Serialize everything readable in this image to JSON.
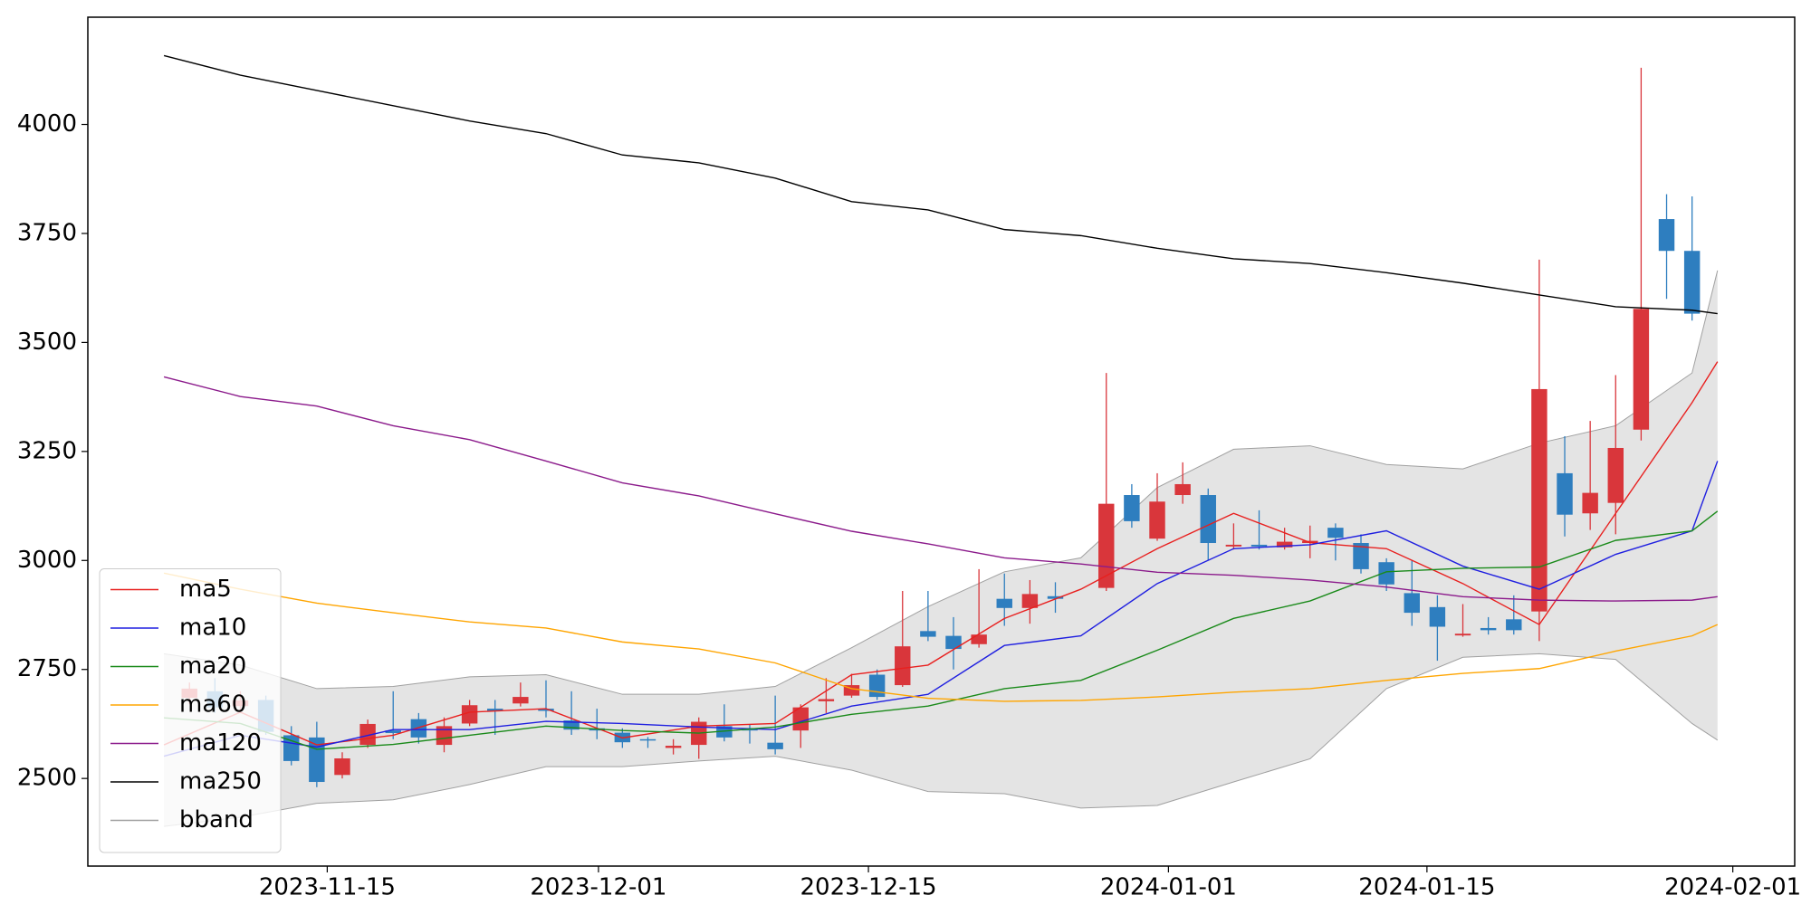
{
  "chart_data": {
    "type": "candlestick",
    "xlim": [
      -2.99,
      64.03
    ],
    "ylim": [
      2299,
      4246
    ],
    "xticks": [
      {
        "value": 6.41,
        "label": "2023-11-15"
      },
      {
        "value": 17.06,
        "label": "2023-12-01"
      },
      {
        "value": 27.66,
        "label": "2023-12-15"
      },
      {
        "value": 39.44,
        "label": "2024-01-01"
      },
      {
        "value": 49.59,
        "label": "2024-01-15"
      },
      {
        "value": 61.6,
        "label": "2024-02-01"
      }
    ],
    "yticks": [
      2500,
      2750,
      3000,
      3250,
      3500,
      3750,
      4000
    ],
    "legend": "lower left",
    "candles": {
      "up_color": "#d9363b",
      "down_color": "#2e7ebf",
      "x": [
        1,
        2,
        3,
        4,
        5,
        6,
        7,
        8,
        9,
        10,
        11,
        12,
        13,
        14,
        15,
        16,
        17,
        18,
        19,
        20,
        21,
        22,
        23,
        24,
        25,
        26,
        27,
        28,
        29,
        30,
        31,
        32,
        33,
        34,
        35,
        37,
        38,
        39,
        40,
        41,
        42,
        43,
        44,
        45,
        46,
        47,
        48,
        49,
        50,
        51,
        52,
        53,
        54,
        55,
        56,
        57,
        58,
        59,
        60
      ],
      "open": [
        2685,
        2700,
        2666,
        2680,
        2599,
        2594,
        2508,
        2577,
        2610,
        2636,
        2577,
        2626,
        2660,
        2672,
        2660,
        2633,
        2615,
        2605,
        2590,
        2570,
        2577,
        2620,
        2615,
        2582,
        2610,
        2677,
        2690,
        2738,
        2714,
        2838,
        2827,
        2808,
        2912,
        2891,
        2918,
        2937,
        3150,
        3050,
        3150,
        3150,
        3032,
        3036,
        3030,
        3040,
        3075,
        3040,
        2996,
        2925,
        2893,
        2828,
        2845,
        2865,
        2883,
        3200,
        3108,
        3132,
        3300,
        3783,
        3710
      ],
      "high": [
        2720,
        2730,
        2700,
        2690,
        2620,
        2630,
        2560,
        2635,
        2700,
        2650,
        2640,
        2680,
        2680,
        2720,
        2725,
        2700,
        2660,
        2615,
        2595,
        2590,
        2640,
        2670,
        2625,
        2690,
        2670,
        2730,
        2740,
        2750,
        2930,
        2930,
        2870,
        2980,
        2970,
        2955,
        2950,
        3430,
        3175,
        3200,
        3225,
        3165,
        3085,
        3115,
        3075,
        3080,
        3085,
        3060,
        3005,
        3000,
        2920,
        2900,
        2870,
        2920,
        3690,
        3285,
        3320,
        3425,
        4130,
        3840,
        3835
      ],
      "low": [
        2670,
        2650,
        2650,
        2600,
        2530,
        2480,
        2500,
        2570,
        2590,
        2580,
        2560,
        2620,
        2600,
        2665,
        2640,
        2600,
        2590,
        2570,
        2570,
        2555,
        2545,
        2585,
        2580,
        2555,
        2570,
        2650,
        2685,
        2680,
        2710,
        2815,
        2750,
        2800,
        2850,
        2855,
        2880,
        2930,
        3075,
        3045,
        3130,
        3000,
        3025,
        3025,
        3025,
        3005,
        3000,
        2970,
        2930,
        2850,
        2770,
        2825,
        2830,
        2830,
        2815,
        3055,
        3070,
        3060,
        3275,
        3600,
        3550
      ],
      "close": [
        2706,
        2663,
        2679,
        2607,
        2540,
        2492,
        2546,
        2625,
        2604,
        2594,
        2620,
        2668,
        2655,
        2687,
        2655,
        2612,
        2610,
        2583,
        2588,
        2575,
        2630,
        2594,
        2610,
        2567,
        2663,
        2682,
        2714,
        2687,
        2803,
        2825,
        2797,
        2830,
        2891,
        2923,
        2912,
        3130,
        3090,
        3135,
        3175,
        3040,
        3036,
        3032,
        3043,
        3045,
        3052,
        2980,
        2945,
        2880,
        2848,
        2832,
        2840,
        2840,
        3393,
        3105,
        3155,
        3258,
        3577,
        3710,
        3566
      ]
    },
    "x": [
      0,
      3,
      6,
      9,
      12,
      15,
      18,
      21,
      24,
      27,
      30,
      33,
      36,
      39,
      42,
      45,
      48,
      51,
      54,
      57,
      60,
      61
    ],
    "series": [
      {
        "name": "ma5",
        "color": "#e8201f",
        "values": [
          2577,
          2652,
          2577,
          2599,
          2652,
          2660,
          2593,
          2620,
          2626,
          2738,
          2760,
          2867,
          2934,
          3027,
          3108,
          3041,
          3027,
          2947,
          2853,
          3108,
          3362,
          3456
        ]
      },
      {
        "name": "ma10",
        "color": "#1f1fe0",
        "values": [
          2551,
          2599,
          2572,
          2612,
          2612,
          2631,
          2626,
          2618,
          2612,
          2666,
          2693,
          2805,
          2827,
          2947,
          3027,
          3036,
          3068,
          2987,
          2934,
          3014,
          3068,
          3228
        ]
      },
      {
        "name": "ma20",
        "color": "#1a8a1a",
        "values": [
          2639,
          2626,
          2567,
          2578,
          2599,
          2620,
          2610,
          2604,
          2618,
          2647,
          2666,
          2706,
          2725,
          2794,
          2867,
          2907,
          2974,
          2982,
          2985,
          3046,
          3068,
          3113
        ]
      },
      {
        "name": "ma60",
        "color": "#ffa500",
        "values": [
          2971,
          2934,
          2902,
          2880,
          2859,
          2845,
          2813,
          2797,
          2765,
          2706,
          2684,
          2677,
          2679,
          2687,
          2698,
          2706,
          2725,
          2741,
          2752,
          2792,
          2827,
          2853
        ]
      },
      {
        "name": "ma120",
        "color": "#8b1a8b",
        "values": [
          3421,
          3376,
          3354,
          3309,
          3277,
          3228,
          3178,
          3148,
          3107,
          3067,
          3038,
          3006,
          2992,
          2973,
          2966,
          2955,
          2939,
          2917,
          2909,
          2907,
          2909,
          2917
        ]
      },
      {
        "name": "ma250",
        "color": "#000000",
        "values": [
          4158,
          4113,
          4078,
          4043,
          4008,
          3979,
          3930,
          3912,
          3877,
          3823,
          3804,
          3759,
          3745,
          3716,
          3692,
          3681,
          3660,
          3636,
          3609,
          3582,
          3574,
          3566
        ]
      }
    ],
    "bband": {
      "name": "bband",
      "color": "#a0a0a0",
      "fill": "#e4e4e4",
      "upper": [
        2786,
        2760,
        2706,
        2711,
        2733,
        2738,
        2693,
        2693,
        2711,
        2800,
        2894,
        2974,
        3006,
        3167,
        3255,
        3263,
        3220,
        3210,
        3269,
        3309,
        3430,
        3665
      ],
      "lower": [
        2390,
        2411,
        2443,
        2451,
        2486,
        2527,
        2527,
        2540,
        2551,
        2519,
        2470,
        2465,
        2432,
        2438,
        2492,
        2545,
        2706,
        2778,
        2786,
        2773,
        2626,
        2588
      ]
    }
  }
}
